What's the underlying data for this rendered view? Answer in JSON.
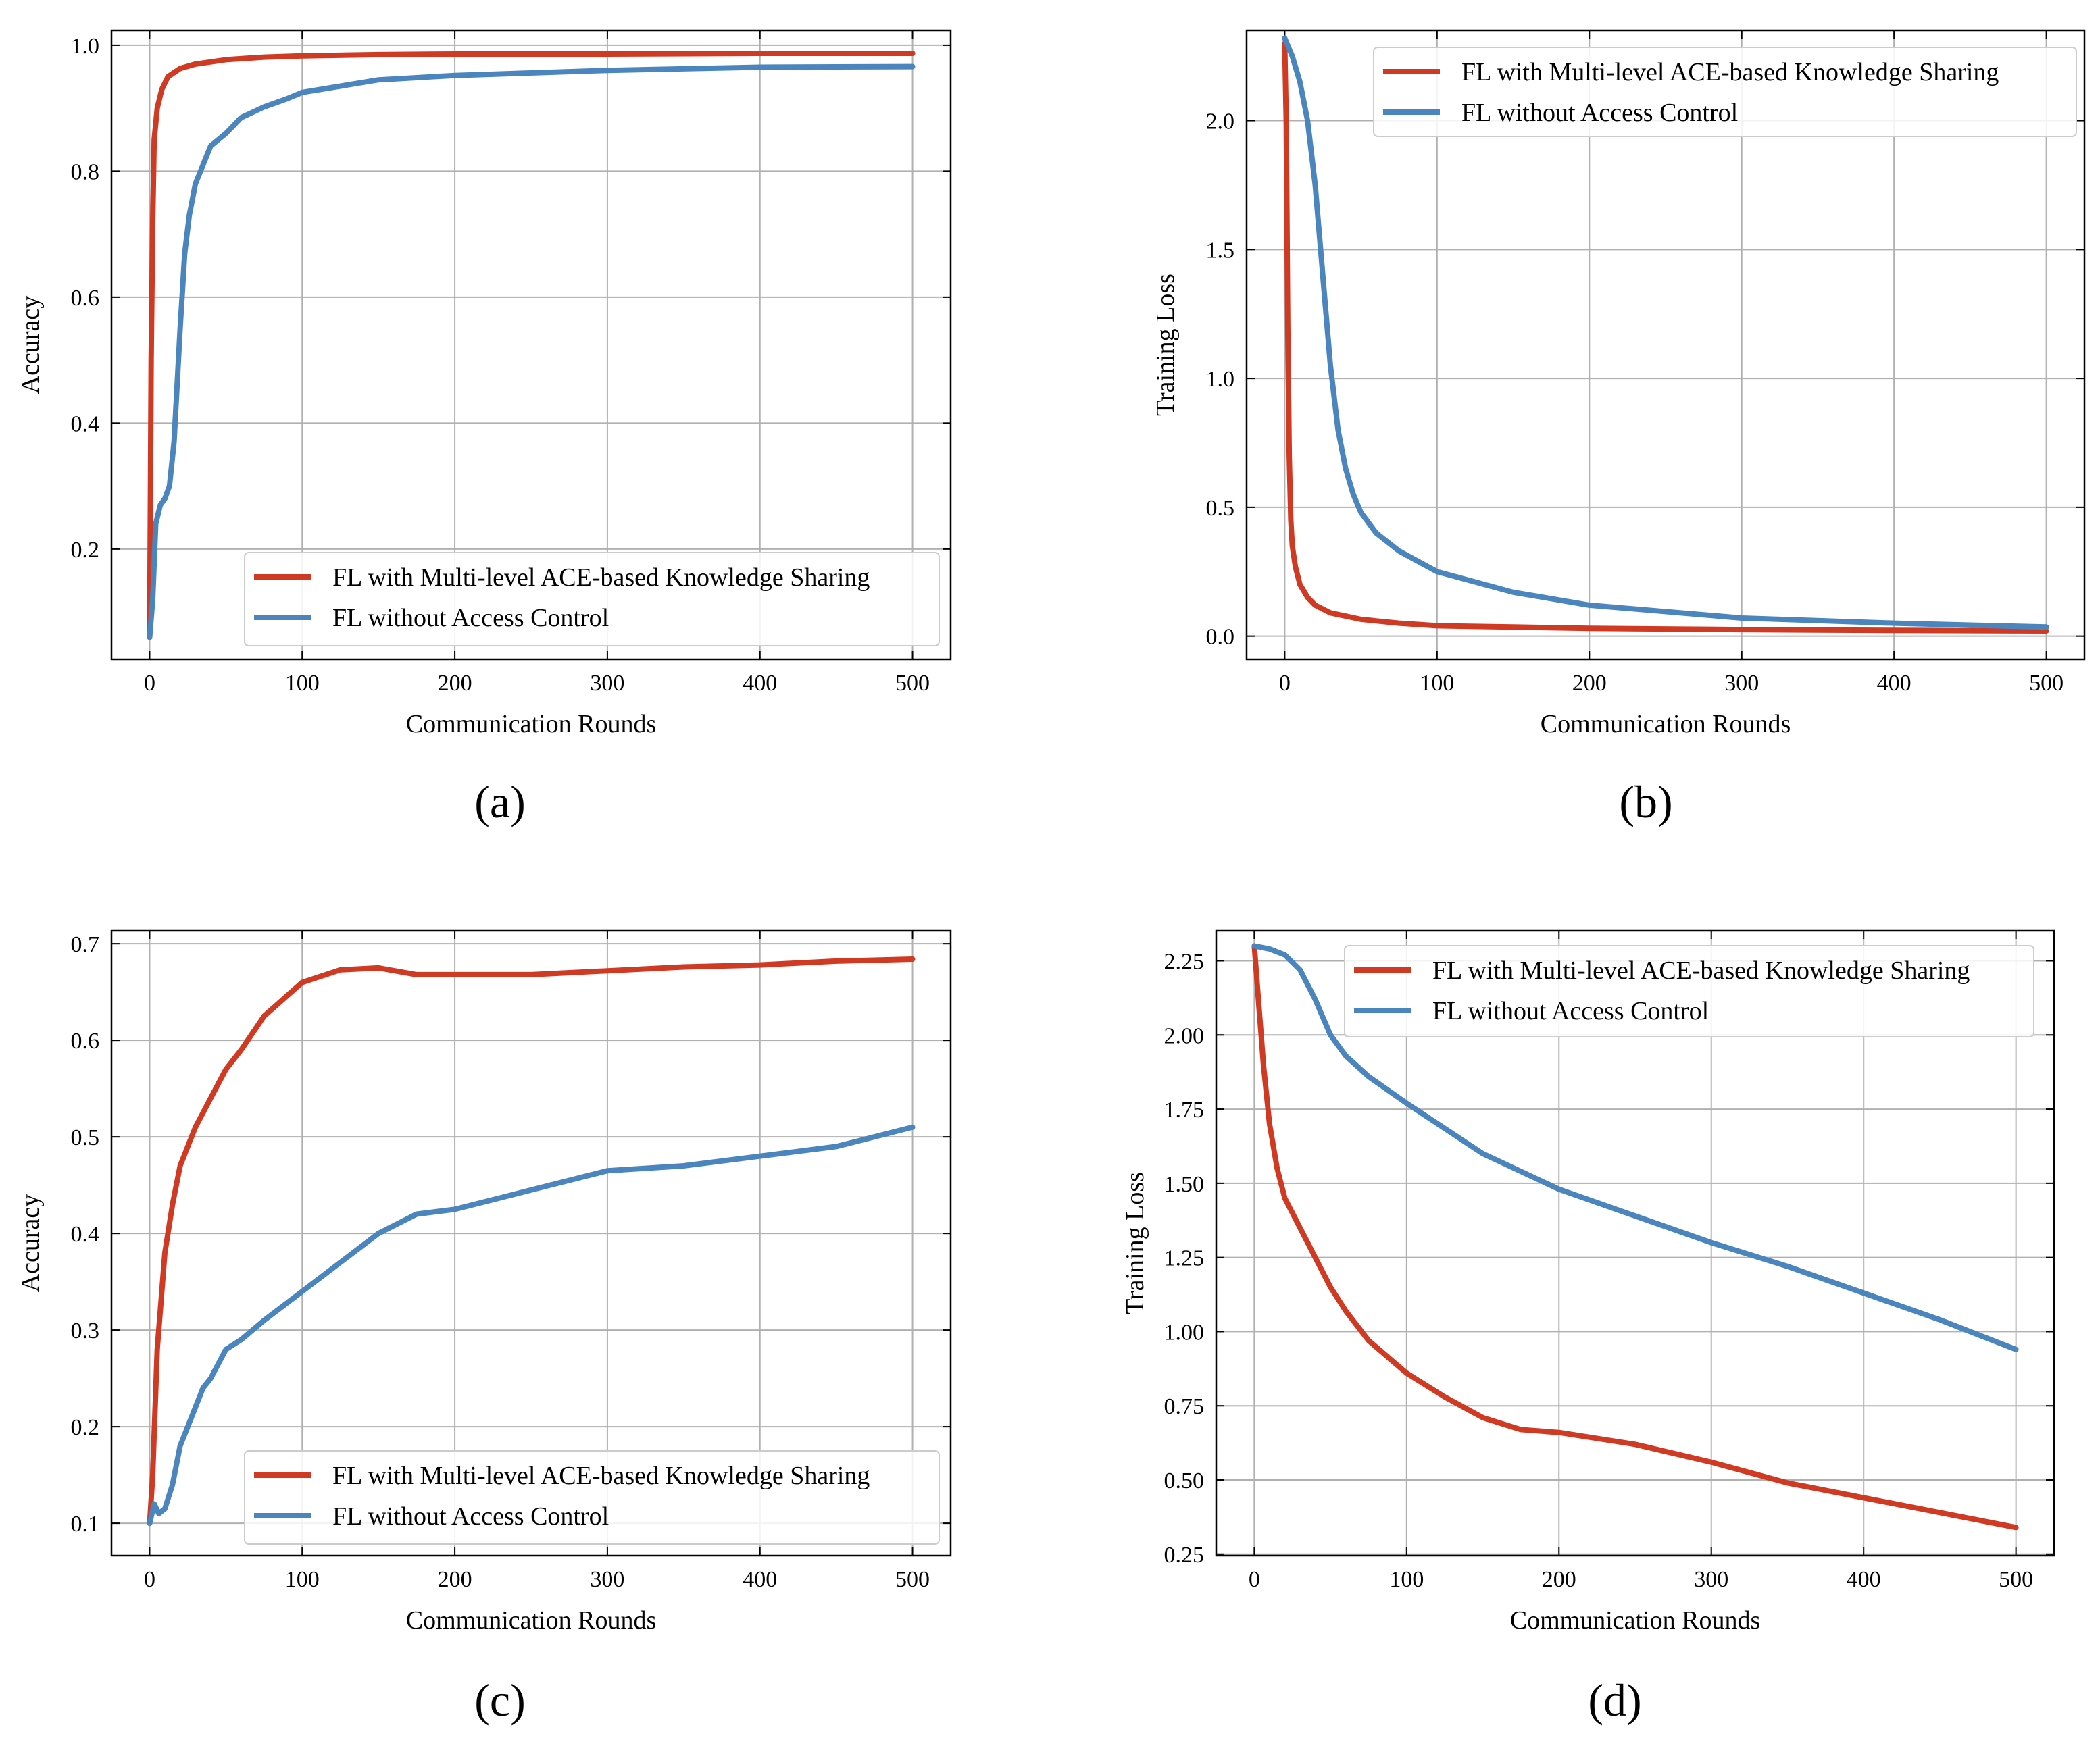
{
  "colors": {
    "red": "#d03a22",
    "blue": "#4a86bd",
    "grid": "#b0b0b0",
    "axis": "#000000"
  },
  "chart_data": [
    {
      "id": "a",
      "type": "line",
      "caption": "(a)",
      "xlabel": "Communication Rounds",
      "ylabel": "Accuracy",
      "xlim": [
        -25,
        525
      ],
      "ylim": [
        0.025,
        1.0235
      ],
      "xticks": [
        0,
        100,
        200,
        300,
        400,
        500
      ],
      "xtick_labels": [
        "0",
        "100",
        "200",
        "300",
        "400",
        "500"
      ],
      "yticks": [
        0.2,
        0.4,
        0.6,
        0.8,
        1.0
      ],
      "ytick_labels": [
        "0.2",
        "0.4",
        "0.6",
        "0.8",
        "1.0"
      ],
      "grid": true,
      "legend_position": "lower-right",
      "series": [
        {
          "name": "FL with Multi-level ACE-based Knowledge Sharing",
          "color": "red",
          "x": [
            0,
            1,
            2,
            3,
            5,
            8,
            12,
            20,
            30,
            50,
            75,
            100,
            150,
            200,
            300,
            400,
            500
          ],
          "y": [
            0.06,
            0.5,
            0.72,
            0.85,
            0.9,
            0.93,
            0.95,
            0.963,
            0.97,
            0.977,
            0.981,
            0.983,
            0.985,
            0.986,
            0.986,
            0.987,
            0.987
          ]
        },
        {
          "name": "FL without Access Control",
          "color": "blue",
          "x": [
            0,
            2,
            4,
            7,
            10,
            13,
            16,
            20,
            23,
            26,
            30,
            35,
            40,
            50,
            60,
            75,
            90,
            100,
            150,
            200,
            300,
            400,
            500
          ],
          "y": [
            0.06,
            0.12,
            0.24,
            0.27,
            0.28,
            0.3,
            0.37,
            0.55,
            0.67,
            0.73,
            0.78,
            0.81,
            0.84,
            0.86,
            0.885,
            0.902,
            0.915,
            0.925,
            0.945,
            0.952,
            0.96,
            0.965,
            0.966
          ]
        }
      ]
    },
    {
      "id": "b",
      "type": "line",
      "caption": "(b)",
      "xlabel": "Communication Rounds",
      "ylabel": "Training Loss",
      "xlim": [
        -25,
        525
      ],
      "ylim": [
        -0.09,
        2.35
      ],
      "xticks": [
        0,
        100,
        200,
        300,
        400,
        500
      ],
      "xtick_labels": [
        "0",
        "100",
        "200",
        "300",
        "400",
        "500"
      ],
      "yticks": [
        0.0,
        0.5,
        1.0,
        1.5,
        2.0
      ],
      "ytick_labels": [
        "0.0",
        "0.5",
        "1.0",
        "1.5",
        "2.0"
      ],
      "grid": true,
      "legend_position": "top-right",
      "series": [
        {
          "name": "FL with Multi-level ACE-based Knowledge Sharing",
          "color": "red",
          "x": [
            0,
            1,
            2,
            3,
            4,
            5,
            7,
            10,
            15,
            20,
            30,
            50,
            75,
            100,
            150,
            200,
            300,
            400,
            500
          ],
          "y": [
            2.3,
            2.0,
            1.2,
            0.7,
            0.45,
            0.35,
            0.27,
            0.2,
            0.15,
            0.12,
            0.09,
            0.065,
            0.05,
            0.04,
            0.035,
            0.03,
            0.025,
            0.022,
            0.02
          ]
        },
        {
          "name": "FL without Access Control",
          "color": "blue",
          "x": [
            0,
            5,
            10,
            15,
            20,
            25,
            30,
            35,
            40,
            45,
            50,
            60,
            75,
            100,
            150,
            200,
            300,
            400,
            500
          ],
          "y": [
            2.32,
            2.25,
            2.15,
            2.0,
            1.75,
            1.4,
            1.05,
            0.8,
            0.65,
            0.55,
            0.48,
            0.4,
            0.33,
            0.25,
            0.17,
            0.12,
            0.07,
            0.05,
            0.035
          ]
        }
      ]
    },
    {
      "id": "c",
      "type": "line",
      "caption": "(c)",
      "xlabel": "Communication Rounds",
      "ylabel": "Accuracy",
      "xlim": [
        -25,
        525
      ],
      "ylim": [
        0.0665,
        0.7134
      ],
      "xticks": [
        0,
        100,
        200,
        300,
        400,
        500
      ],
      "xtick_labels": [
        "0",
        "100",
        "200",
        "300",
        "400",
        "500"
      ],
      "yticks": [
        0.1,
        0.2,
        0.3,
        0.4,
        0.5,
        0.6,
        0.7
      ],
      "ytick_labels": [
        "0.1",
        "0.2",
        "0.3",
        "0.4",
        "0.5",
        "0.6",
        "0.7"
      ],
      "grid": true,
      "legend_position": "lower-right",
      "series": [
        {
          "name": "FL with Multi-level ACE-based Knowledge Sharing",
          "color": "red",
          "x": [
            0,
            2,
            5,
            10,
            15,
            20,
            25,
            30,
            40,
            50,
            60,
            75,
            100,
            125,
            150,
            175,
            200,
            250,
            300,
            350,
            400,
            450,
            500
          ],
          "y": [
            0.1,
            0.15,
            0.28,
            0.38,
            0.43,
            0.47,
            0.49,
            0.51,
            0.54,
            0.57,
            0.59,
            0.625,
            0.66,
            0.673,
            0.675,
            0.668,
            0.668,
            0.668,
            0.672,
            0.676,
            0.678,
            0.682,
            0.684
          ]
        },
        {
          "name": "FL without Access Control",
          "color": "blue",
          "x": [
            0,
            3,
            6,
            10,
            15,
            20,
            25,
            30,
            35,
            40,
            50,
            60,
            75,
            100,
            125,
            150,
            175,
            200,
            250,
            300,
            350,
            400,
            450,
            500
          ],
          "y": [
            0.1,
            0.12,
            0.11,
            0.115,
            0.14,
            0.18,
            0.2,
            0.22,
            0.24,
            0.25,
            0.28,
            0.29,
            0.31,
            0.34,
            0.37,
            0.4,
            0.42,
            0.425,
            0.445,
            0.465,
            0.47,
            0.48,
            0.49,
            0.51
          ]
        }
      ]
    },
    {
      "id": "d",
      "type": "line",
      "caption": "(d)",
      "xlabel": "Communication Rounds",
      "ylabel": "Training Loss",
      "xlim": [
        -25,
        525
      ],
      "ylim": [
        0.245,
        2.3513
      ],
      "xticks": [
        0,
        100,
        200,
        300,
        400,
        500
      ],
      "xtick_labels": [
        "0",
        "100",
        "200",
        "300",
        "400",
        "500"
      ],
      "yticks": [
        0.25,
        0.5,
        0.75,
        1.0,
        1.25,
        1.5,
        1.75,
        2.0,
        2.25
      ],
      "ytick_labels": [
        "0.25",
        "0.50",
        "0.75",
        "1.00",
        "1.25",
        "1.50",
        "1.75",
        "2.00",
        "2.25"
      ],
      "grid": true,
      "legend_position": "top-right",
      "series": [
        {
          "name": "FL with Multi-level ACE-based Knowledge Sharing",
          "color": "red",
          "x": [
            0,
            3,
            6,
            10,
            15,
            20,
            30,
            40,
            50,
            60,
            75,
            100,
            125,
            150,
            175,
            200,
            250,
            300,
            350,
            400,
            450,
            500
          ],
          "y": [
            2.3,
            2.1,
            1.9,
            1.7,
            1.55,
            1.45,
            1.35,
            1.25,
            1.15,
            1.07,
            0.97,
            0.86,
            0.78,
            0.71,
            0.67,
            0.66,
            0.62,
            0.56,
            0.49,
            0.44,
            0.39,
            0.34
          ]
        },
        {
          "name": "FL without Access Control",
          "color": "blue",
          "x": [
            0,
            10,
            20,
            30,
            40,
            50,
            60,
            75,
            100,
            150,
            200,
            250,
            300,
            350,
            400,
            450,
            500
          ],
          "y": [
            2.3,
            2.29,
            2.27,
            2.22,
            2.12,
            2.0,
            1.93,
            1.86,
            1.77,
            1.6,
            1.48,
            1.39,
            1.3,
            1.22,
            1.13,
            1.04,
            0.94
          ]
        }
      ]
    }
  ]
}
